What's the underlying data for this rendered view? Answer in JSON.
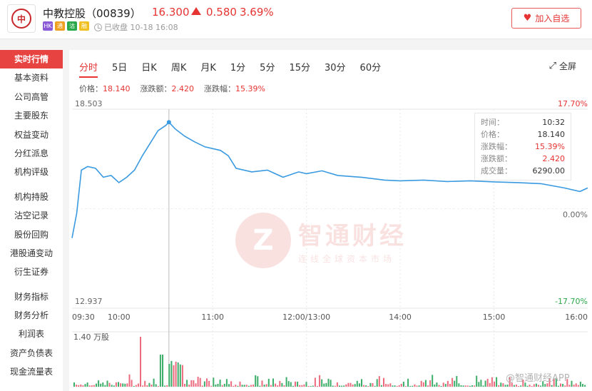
{
  "header": {
    "stock_name": "中教控股（00839）",
    "price": "16.300",
    "change": "0.580",
    "change_pct": "3.69%",
    "tags": [
      {
        "text": "HK",
        "color": "#8a5ad6"
      },
      {
        "text": "通",
        "color": "#f0a020"
      },
      {
        "text": "沽",
        "color": "#2aa84a"
      },
      {
        "text": "融",
        "color": "#f0c020"
      }
    ],
    "status": "已收盘 10-18 16:08",
    "watch_label": "加入自选"
  },
  "sidebar": {
    "group1": [
      "实时行情",
      "基本资料",
      "公司高管",
      "主要股东",
      "权益变动",
      "分红派息",
      "机构评级"
    ],
    "group2": [
      "机构持股",
      "沽空记录",
      "股份回购",
      "港股通变动",
      "衍生证券"
    ],
    "group3": [
      "财务指标",
      "财务分析",
      "利润表",
      "资产负债表",
      "现金流量表"
    ]
  },
  "tabs": [
    "分时",
    "5日",
    "日K",
    "周K",
    "月K",
    "1分",
    "5分",
    "15分",
    "30分",
    "60分"
  ],
  "fullscreen_label": "全屏",
  "infobar": {
    "price_label": "价格：",
    "price": "18.140",
    "change_label": "涨跌额：",
    "change": "2.420",
    "pct_label": "涨跌幅：",
    "pct": "15.39%"
  },
  "tooltip": {
    "rows": [
      {
        "k": "时间：",
        "v": "10:32"
      },
      {
        "k": "价格：",
        "v": "18.140"
      },
      {
        "k": "涨跌幅：",
        "v": "15.39%"
      },
      {
        "k": "涨跌额：",
        "v": "2.420"
      },
      {
        "k": "成交量：",
        "v": "6290.00"
      }
    ]
  },
  "watermark": {
    "logo": "Z",
    "title": "智通财经",
    "subtitle": "连线全球资本市场"
  },
  "corner_watermark": "@智通财经APP",
  "colors": {
    "up": "#e63433",
    "down": "#2aa84a",
    "line": "#3a9ae0"
  },
  "chart_data": {
    "type": "line",
    "y_left_ticks": [
      "18.503",
      "12.937"
    ],
    "y_right_ticks": [
      "17.70%",
      "0.00%",
      "-17.70%"
    ],
    "ylim": [
      12.937,
      18.503
    ],
    "prev_close": 15.72,
    "x_ticks": [
      "09:30",
      "10:00",
      "11:00",
      "12:00/13:00",
      "14:00",
      "15:00",
      "16:00"
    ],
    "volume_label": "1.40 万股",
    "price_series": [
      {
        "t": "09:30",
        "v": 14.9
      },
      {
        "t": "09:33",
        "v": 15.6
      },
      {
        "t": "09:36",
        "v": 16.8
      },
      {
        "t": "09:40",
        "v": 16.9
      },
      {
        "t": "09:45",
        "v": 16.85
      },
      {
        "t": "09:50",
        "v": 16.6
      },
      {
        "t": "09:55",
        "v": 16.65
      },
      {
        "t": "10:00",
        "v": 16.45
      },
      {
        "t": "10:05",
        "v": 16.6
      },
      {
        "t": "10:10",
        "v": 16.8
      },
      {
        "t": "10:15",
        "v": 17.2
      },
      {
        "t": "10:20",
        "v": 17.55
      },
      {
        "t": "10:25",
        "v": 17.9
      },
      {
        "t": "10:30",
        "v": 18.05
      },
      {
        "t": "10:32",
        "v": 18.14
      },
      {
        "t": "10:36",
        "v": 17.95
      },
      {
        "t": "10:42",
        "v": 17.75
      },
      {
        "t": "10:48",
        "v": 17.6
      },
      {
        "t": "10:55",
        "v": 17.45
      },
      {
        "t": "11:05",
        "v": 17.35
      },
      {
        "t": "11:10",
        "v": 17.2
      },
      {
        "t": "11:15",
        "v": 16.85
      },
      {
        "t": "11:25",
        "v": 16.75
      },
      {
        "t": "11:35",
        "v": 16.8
      },
      {
        "t": "11:45",
        "v": 16.6
      },
      {
        "t": "11:55",
        "v": 16.75
      },
      {
        "t": "12:00",
        "v": 16.7
      },
      {
        "t": "13:10",
        "v": 16.78
      },
      {
        "t": "13:20",
        "v": 16.65
      },
      {
        "t": "13:35",
        "v": 16.6
      },
      {
        "t": "13:50",
        "v": 16.52
      },
      {
        "t": "14:00",
        "v": 16.5
      },
      {
        "t": "14:15",
        "v": 16.52
      },
      {
        "t": "14:30",
        "v": 16.48
      },
      {
        "t": "14:45",
        "v": 16.5
      },
      {
        "t": "15:00",
        "v": 16.47
      },
      {
        "t": "15:15",
        "v": 16.45
      },
      {
        "t": "15:30",
        "v": 16.42
      },
      {
        "t": "15:45",
        "v": 16.3
      },
      {
        "t": "15:55",
        "v": 16.2
      },
      {
        "t": "16:00",
        "v": 16.3
      }
    ],
    "volume_max": 1.4,
    "volume_note": "per-minute volume bars, values in 万股"
  }
}
